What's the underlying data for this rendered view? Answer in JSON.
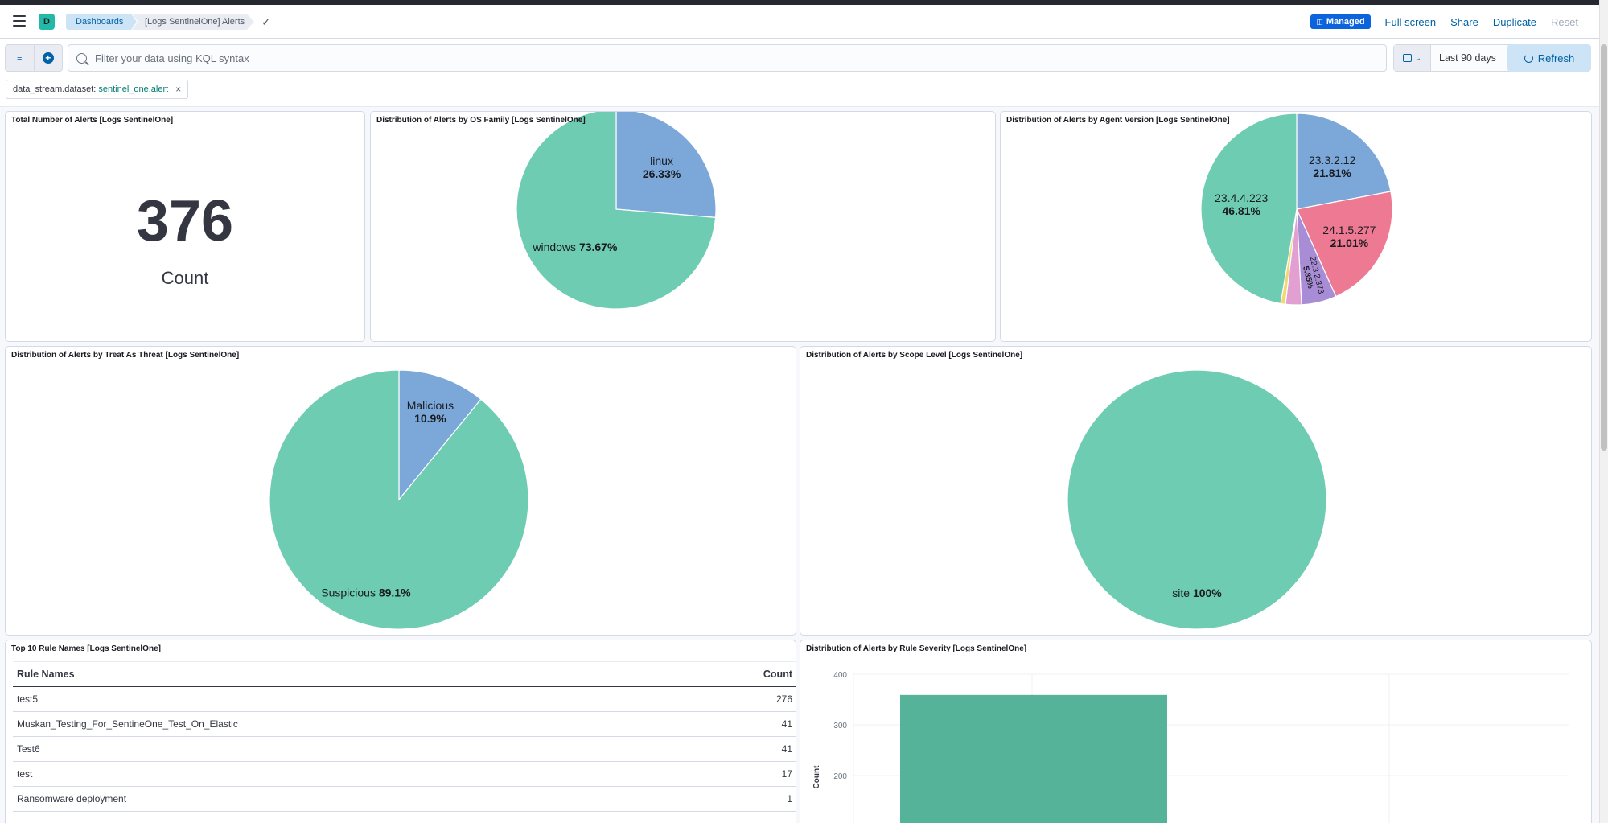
{
  "header": {
    "space_initial": "D",
    "breadcrumbs": [
      "Dashboards",
      "[Logs SentinelOne] Alerts"
    ],
    "managed_label": "Managed",
    "actions": [
      "Full screen",
      "Share",
      "Duplicate",
      "Reset"
    ]
  },
  "query": {
    "placeholder": "Filter your data using KQL syntax",
    "date_range": "Last 90 days",
    "refresh_label": "Refresh"
  },
  "filter_pill": {
    "field": "data_stream.dataset:",
    "value": "sentinel_one.alert"
  },
  "panels": {
    "total": {
      "title": "Total Number of Alerts [Logs SentinelOne]",
      "value": "376",
      "label": "Count"
    },
    "os_family": {
      "title": "Distribution of Alerts by OS Family [Logs SentinelOne]"
    },
    "agent_version": {
      "title": "Distribution of Alerts by Agent Version [Logs SentinelOne]"
    },
    "treat_as_threat": {
      "title": "Distribution of Alerts by Treat As Threat [Logs SentinelOne]"
    },
    "scope_level": {
      "title": "Distribution of Alerts by Scope Level [Logs SentinelOne]"
    },
    "rule_names": {
      "title": "Top 10 Rule Names [Logs SentinelOne]",
      "columns": [
        "Rule Names",
        "Count"
      ],
      "rows": [
        [
          "test5",
          "276"
        ],
        [
          "Muskan_Testing_For_SentineOne_Test_On_Elastic",
          "41"
        ],
        [
          "Test6",
          "41"
        ],
        [
          "test",
          "17"
        ],
        [
          "Ransomware deployment",
          "1"
        ]
      ]
    },
    "rule_severity": {
      "title": "Distribution of Alerts by Rule Severity [Logs SentinelOne]"
    }
  },
  "chart_data": [
    {
      "type": "pie",
      "labels": [
        "linux",
        "windows"
      ],
      "values": [
        26.33,
        73.67
      ],
      "display": [
        "26.33%",
        "73.67%"
      ],
      "colors": [
        "#7ba8d9",
        "#6dccb1"
      ]
    },
    {
      "type": "pie",
      "labels": [
        "23.3.2.12",
        "24.1.5.277",
        "22.3.2.373",
        "",
        "",
        "23.4.4.223"
      ],
      "values": [
        21.81,
        21.01,
        5.85,
        2.66,
        0.8,
        46.81
      ],
      "display": [
        "21.81%",
        "21.01%",
        "5.85%",
        "",
        "",
        "46.81%"
      ],
      "colors": [
        "#7ba8d9",
        "#ee7993",
        "#a98cd6",
        "#e29fd1",
        "#f1d86f",
        "#6dccb1"
      ]
    },
    {
      "type": "pie",
      "labels": [
        "Malicious",
        "Suspicious"
      ],
      "values": [
        10.9,
        89.1
      ],
      "display": [
        "10.9%",
        "89.1%"
      ],
      "colors": [
        "#7ba8d9",
        "#6dccb1"
      ]
    },
    {
      "type": "pie",
      "labels": [
        "site"
      ],
      "values": [
        100
      ],
      "display": [
        "100%"
      ],
      "colors": [
        "#6dccb1"
      ]
    },
    {
      "type": "bar",
      "ylabel": "Count",
      "y_ticks": [
        "400",
        "300",
        "200"
      ],
      "ylim": [
        0,
        400
      ],
      "values": [
        359
      ],
      "colors": [
        "#54b399"
      ]
    }
  ]
}
